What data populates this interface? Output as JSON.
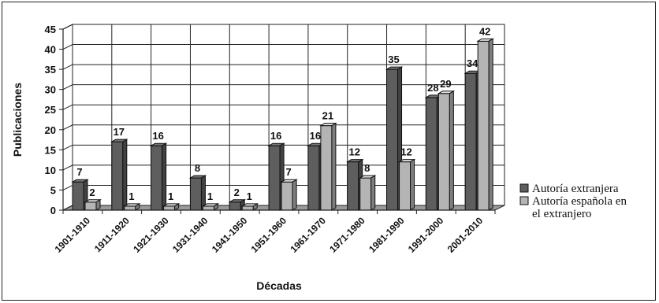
{
  "chart_data": {
    "type": "bar",
    "title": "",
    "xlabel": "Décadas",
    "ylabel": "Publicaciones",
    "ylim": [
      0,
      45
    ],
    "yticks": [
      0,
      5,
      10,
      15,
      20,
      25,
      30,
      35,
      40,
      45
    ],
    "grid": true,
    "legend_position": "right",
    "categories": [
      "1901-1910",
      "1911-1920",
      "1921-1930",
      "1931-1940",
      "1941-1950",
      "1951-1960",
      "1961-1970",
      "1971-1980",
      "1981-1990",
      "1991-2000",
      "2001-2010"
    ],
    "series": [
      {
        "name": "Autoría extranjera",
        "color": "#5e5e5e",
        "values": [
          7,
          17,
          16,
          8,
          2,
          16,
          16,
          12,
          35,
          28,
          34
        ]
      },
      {
        "name": "Autoría española en el extranjero",
        "color": "#b4b4b4",
        "values": [
          2,
          1,
          1,
          1,
          1,
          7,
          21,
          8,
          12,
          29,
          42
        ]
      }
    ]
  },
  "legend": {
    "items": [
      {
        "lines": [
          "Autoría extranjera"
        ],
        "color": "#5e5e5e"
      },
      {
        "lines": [
          "Autoría española en",
          "el extranjero"
        ],
        "color": "#b4b4b4"
      }
    ]
  }
}
